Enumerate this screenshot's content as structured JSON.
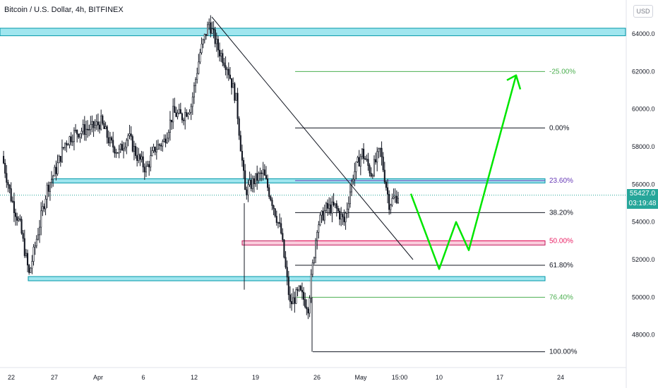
{
  "header": {
    "title": "Bitcoin / U.S. Dollar, 4h, BITFINEX",
    "currency_button": "USD"
  },
  "price_badge": {
    "price": "55427.0",
    "countdown": "03:19:48"
  },
  "colors": {
    "up": "#131722",
    "down": "#131722",
    "zone_cyan": "#80deea",
    "zone_cyan_border": "#0097a7",
    "zone_pink": "#f8bbd0",
    "zone_pink_border": "#c2185b",
    "projection": "#00e600",
    "fib_green": "#4caf50",
    "fib_black": "#131722",
    "fib_purple": "#673ab7",
    "fib_red": "#e91e63",
    "badge": "#26a69a"
  },
  "chart_data": {
    "type": "candlestick",
    "symbol": "Bitcoin / U.S. Dollar",
    "timeframe": "4h",
    "exchange": "BITFINEX",
    "last_price": 55427.0,
    "y_axis_ticks": [
      "64000.0",
      "62000.0",
      "60000.0",
      "58000.0",
      "56000.0",
      "54000.0",
      "52000.0",
      "50000.0",
      "48000.0"
    ],
    "x_axis_ticks": [
      "22",
      "27",
      "Apr",
      "6",
      "12",
      "19",
      "26",
      "May",
      "15:00",
      "10",
      "17",
      "24"
    ],
    "ylim": [
      46000,
      65500
    ],
    "price_path": [
      [
        "22",
        57500
      ],
      [
        "23",
        55300
      ],
      [
        "24",
        53800
      ],
      [
        "25",
        51200
      ],
      [
        "26",
        53500
      ],
      [
        "27",
        55800
      ],
      [
        "28",
        56800
      ],
      [
        "29",
        58200
      ],
      [
        "30",
        58700
      ],
      [
        "31",
        58900
      ],
      [
        "Apr 1",
        59000
      ],
      [
        "Apr 2",
        59300
      ],
      [
        "Apr 3",
        58200
      ],
      [
        "Apr 4",
        57700
      ],
      [
        "Apr 5",
        58600
      ],
      [
        "Apr 6",
        57500
      ],
      [
        "Apr 7",
        56800
      ],
      [
        "Apr 8",
        57900
      ],
      [
        "Apr 9",
        58300
      ],
      [
        "Apr 10",
        59800
      ],
      [
        "Apr 11",
        59600
      ],
      [
        "Apr 12",
        60200
      ],
      [
        "Apr 13",
        63000
      ],
      [
        "Apr 14",
        64600
      ],
      [
        "Apr 15",
        63200
      ],
      [
        "Apr 16",
        62300
      ],
      [
        "Apr 17",
        60500
      ],
      [
        "Apr 18",
        55600
      ],
      [
        "Apr 19",
        56200
      ],
      [
        "Apr 20",
        56600
      ],
      [
        "Apr 21",
        55100
      ],
      [
        "Apr 22",
        53400
      ],
      [
        "Apr 23",
        49600
      ],
      [
        "Apr 24",
        50300
      ],
      [
        "Apr 25",
        49500
      ],
      [
        "Apr 26",
        53800
      ],
      [
        "Apr 27",
        54700
      ],
      [
        "Apr 28",
        54800
      ],
      [
        "Apr 29",
        54000
      ],
      [
        "Apr 30",
        56500
      ],
      [
        "May 1",
        57700
      ],
      [
        "May 2",
        56600
      ],
      [
        "May 3",
        57800
      ],
      [
        "May 4",
        55000
      ],
      [
        "May 5",
        55427
      ]
    ],
    "zones": [
      {
        "type": "resistance",
        "price_top": 64300,
        "price_bottom": 63900,
        "color": "cyan"
      },
      {
        "type": "support_resistance",
        "price_top": 56300,
        "price_bottom": 56100,
        "color": "cyan"
      },
      {
        "type": "support",
        "price_top": 53000,
        "price_bottom": 52800,
        "color": "pink"
      },
      {
        "type": "support",
        "price_top": 51100,
        "price_bottom": 50900,
        "color": "cyan"
      }
    ],
    "fibonacci_levels": [
      {
        "label": "-25.00%",
        "price": 62000
      },
      {
        "label": "0.00%",
        "price": 59000
      },
      {
        "label": "23.60%",
        "price": 56200
      },
      {
        "label": "38.20%",
        "price": 54500
      },
      {
        "label": "50.00%",
        "price": 53000
      },
      {
        "label": "61.80%",
        "price": 51700
      },
      {
        "label": "76.40%",
        "price": 50000
      },
      {
        "label": "100.00%",
        "price": 47100
      }
    ],
    "projection_path": [
      55500,
      51500,
      54000,
      52500,
      61800
    ],
    "grid": false
  }
}
